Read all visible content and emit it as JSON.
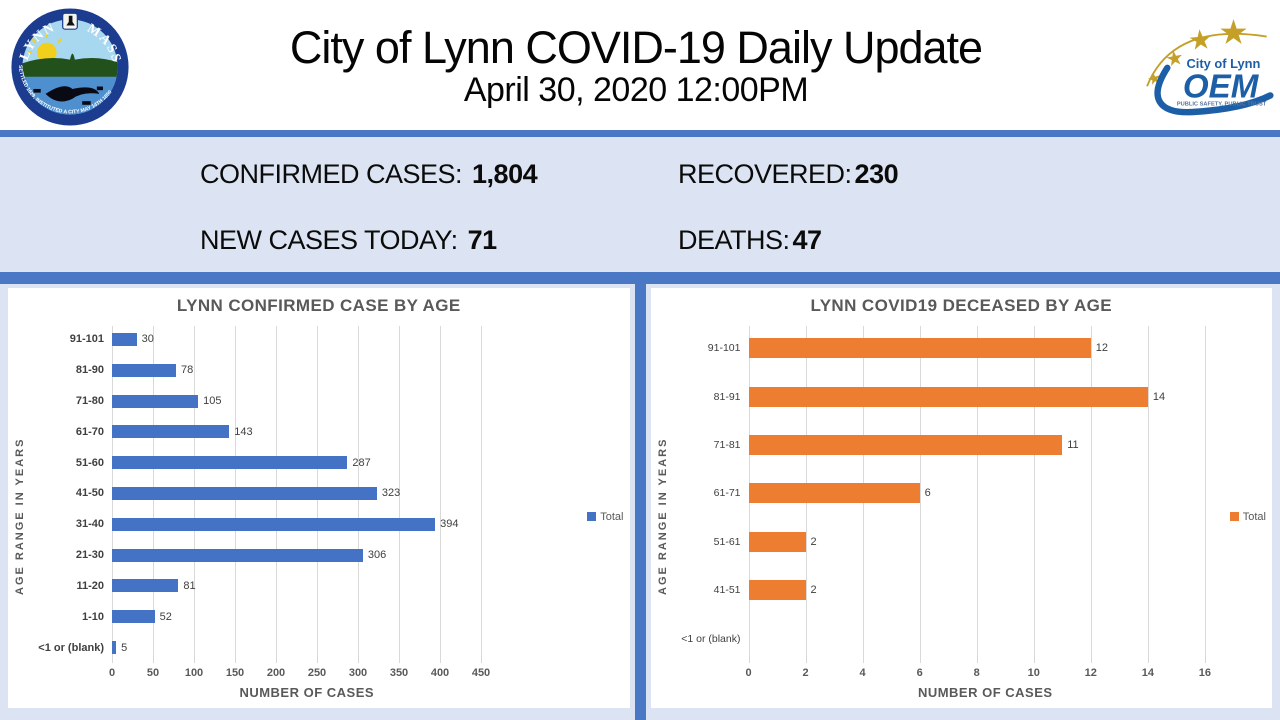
{
  "header": {
    "title": "City of Lynn COVID-19 Daily Update",
    "subtitle": "April 30, 2020 12:00PM",
    "seal": {
      "name": "City of Lynn Massachusetts seal",
      "arc_left": "LYNN",
      "arc_right": "MASS",
      "arc_bottom": "SETTLED 1629, INSTITUTED A CITY MAY 14TH 1850"
    },
    "oem": {
      "line1": "City of Lynn",
      "line2": "OEM",
      "line3": "PUBLIC SAFETY, PUBLIC TRUST"
    }
  },
  "stats": {
    "confirmed_label": "CONFIRMED CASES:",
    "confirmed_value": "1,804",
    "recovered_label": "RECOVERED:",
    "recovered_value": "230",
    "new_cases_label": "NEW CASES TODAY:",
    "new_cases_value": "71",
    "deaths_label": "DEATHS:",
    "deaths_value": "47"
  },
  "colors": {
    "divider_blue": "#4b78c5",
    "stats_band": "#dce4f3",
    "confirmed_bar": "#4472C4",
    "deceased_bar": "#ED7D31",
    "chart_text_gray": "#595959",
    "gridline": "#d9d9d9"
  },
  "chart_data": [
    {
      "type": "bar",
      "orientation": "horizontal",
      "title": "LYNN CONFIRMED CASE BY AGE",
      "categories": [
        "91-101",
        "81-90",
        "71-80",
        "61-70",
        "51-60",
        "41-50",
        "31-40",
        "21-30",
        "11-20",
        "1-10",
        "<1 or (blank)"
      ],
      "values": [
        30,
        78,
        105,
        143,
        287,
        323,
        394,
        306,
        81,
        52,
        5
      ],
      "xlabel": "NUMBER OF CASES",
      "ylabel": "AGE RANGE IN YEARS",
      "xticks": [
        0,
        50,
        100,
        150,
        200,
        250,
        300,
        350,
        400,
        450
      ],
      "xlim": [
        0,
        475
      ],
      "grid": true,
      "legend_label": "Total",
      "legend_position": "right",
      "bar_color": "#4472C4"
    },
    {
      "type": "bar",
      "orientation": "horizontal",
      "title": "LYNN COVID19 DECEASED BY AGE",
      "categories": [
        "91-101",
        "81-91",
        "71-81",
        "61-71",
        "51-61",
        "41-51",
        "<1 or (blank)"
      ],
      "values": [
        12,
        14,
        11,
        6,
        2,
        2,
        0
      ],
      "xlabel": "NUMBER OF CASES",
      "ylabel": "AGE RANGE IN YEARS",
      "xticks": [
        0,
        2,
        4,
        6,
        8,
        10,
        12,
        14,
        16
      ],
      "xlim": [
        0,
        16.6
      ],
      "grid": true,
      "legend_label": "Total",
      "legend_position": "right",
      "bar_color": "#ED7D31"
    }
  ]
}
